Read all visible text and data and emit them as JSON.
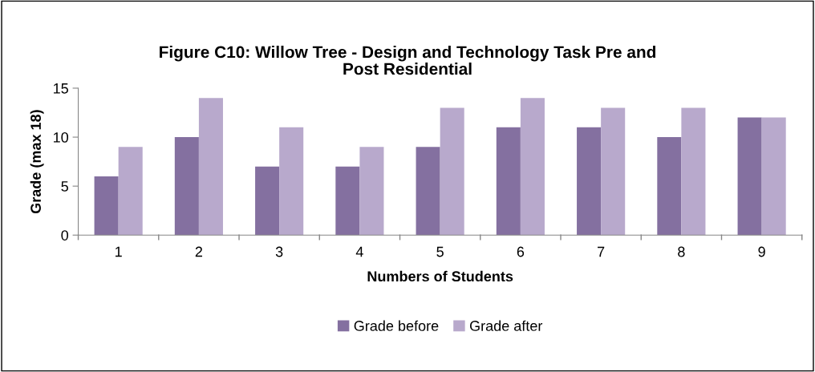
{
  "chart_data": {
    "type": "bar",
    "title": "Figure C10: Willow Tree - Design and Technology Task Pre and\nPost Residential",
    "xlabel": "Numbers of Students",
    "ylabel": "Grade (max 18)",
    "categories": [
      "1",
      "2",
      "3",
      "4",
      "5",
      "6",
      "7",
      "8",
      "9"
    ],
    "series": [
      {
        "name": "Grade before",
        "color": "#8470a0",
        "values": [
          6,
          10,
          7,
          7,
          9,
          11,
          11,
          10,
          12
        ]
      },
      {
        "name": "Grade after",
        "color": "#b8a9cc",
        "values": [
          9,
          14,
          11,
          9,
          13,
          14,
          13,
          13,
          12
        ]
      }
    ],
    "ylim": [
      0,
      15
    ],
    "yticks": [
      0,
      5,
      10,
      15
    ],
    "grid": false,
    "legend": "bottom"
  }
}
